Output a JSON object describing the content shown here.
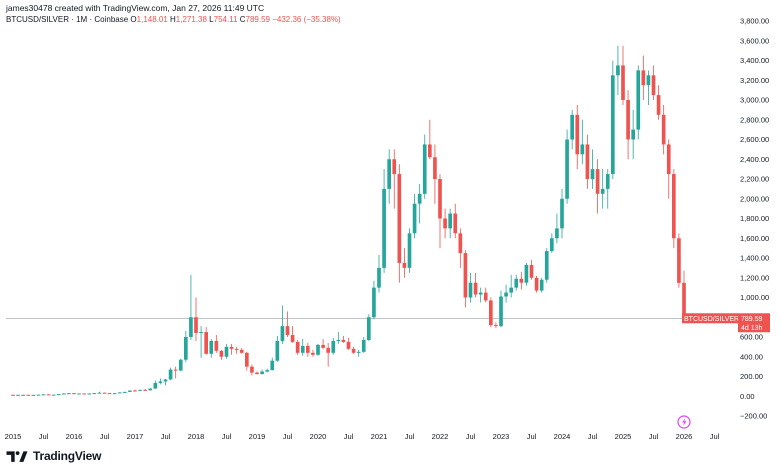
{
  "header": {
    "created_by": "james30478 created with TradingView.com, Jan 27, 2026 11:49 UTC",
    "symbol": "BTCUSD/SILVER",
    "interval": "1M",
    "exchange": "Coinbase",
    "open_label": "O",
    "open_value": "1,148.01",
    "high_label": "H",
    "high_value": "1,271.38",
    "low_label": "L",
    "low_value": "754.11",
    "close_label": "C",
    "close_value": "789.59",
    "change_value": "−432.36 (−35.38%)"
  },
  "colors": {
    "up": "#26a69a",
    "down": "#ef5350",
    "axis_text": "#131722",
    "price_line": "#9aa0a6"
  },
  "price_tag": {
    "label": "BTCUSD/SILVER",
    "value": "789.59",
    "countdown": "4d 13h"
  },
  "event_icon": "lightning-event-icon",
  "footer": {
    "logo_icon": "tradingview-logo-icon",
    "brand": "TradingView"
  },
  "chart_data": {
    "type": "candlestick",
    "title": "",
    "xlabel": "",
    "ylabel": "",
    "ylim": [
      -200,
      3800
    ],
    "y_ticks": [
      3800,
      3600,
      3400,
      3200,
      3000,
      2800,
      2600,
      2400,
      2200,
      2000,
      1800,
      1600,
      1400,
      1200,
      1000,
      800,
      600,
      400,
      200,
      0,
      -200
    ],
    "y_tick_labels": [
      "3,800.00",
      "3,600.00",
      "3,400.00",
      "3,200.00",
      "3,000.00",
      "2,800.00",
      "2,600.00",
      "2,400.00",
      "2,200.00",
      "2,000.00",
      "1,800.00",
      "1,600.00",
      "1,400.00",
      "1,200.00",
      "1,000.00",
      "",
      "600.00",
      "400.00",
      "200.00",
      "0.00",
      "−200.00"
    ],
    "x_ticks": [
      {
        "label": "2015",
        "x": "2015-01"
      },
      {
        "label": "Jul",
        "x": "2015-07"
      },
      {
        "label": "2016",
        "x": "2016-01"
      },
      {
        "label": "Jul",
        "x": "2016-07"
      },
      {
        "label": "2017",
        "x": "2017-01"
      },
      {
        "label": "Jul",
        "x": "2017-07"
      },
      {
        "label": "2018",
        "x": "2018-01"
      },
      {
        "label": "Jul",
        "x": "2018-07"
      },
      {
        "label": "2019",
        "x": "2019-01"
      },
      {
        "label": "Jul",
        "x": "2019-07"
      },
      {
        "label": "2020",
        "x": "2020-01"
      },
      {
        "label": "Jul",
        "x": "2020-07"
      },
      {
        "label": "2021",
        "x": "2021-01"
      },
      {
        "label": "Jul",
        "x": "2021-07"
      },
      {
        "label": "2022",
        "x": "2022-01"
      },
      {
        "label": "Jul",
        "x": "2022-07"
      },
      {
        "label": "2023",
        "x": "2023-01"
      },
      {
        "label": "Jul",
        "x": "2023-07"
      },
      {
        "label": "2024",
        "x": "2024-01"
      },
      {
        "label": "Jul",
        "x": "2024-07"
      },
      {
        "label": "2025",
        "x": "2025-01"
      },
      {
        "label": "Jul",
        "x": "2025-07"
      },
      {
        "label": "2026",
        "x": "2026-01"
      },
      {
        "label": "Jul",
        "x": "2026-07"
      }
    ],
    "grid": false,
    "last_price": 789.59,
    "candles": [
      {
        "t": "2015-01",
        "o": 15,
        "h": 18,
        "l": 12,
        "c": 14
      },
      {
        "t": "2015-02",
        "o": 14,
        "h": 17,
        "l": 12,
        "c": 15
      },
      {
        "t": "2015-03",
        "o": 15,
        "h": 17,
        "l": 13,
        "c": 15
      },
      {
        "t": "2015-04",
        "o": 15,
        "h": 16,
        "l": 13,
        "c": 14
      },
      {
        "t": "2015-05",
        "o": 14,
        "h": 16,
        "l": 13,
        "c": 14
      },
      {
        "t": "2015-06",
        "o": 14,
        "h": 17,
        "l": 13,
        "c": 16
      },
      {
        "t": "2015-07",
        "o": 16,
        "h": 20,
        "l": 15,
        "c": 19
      },
      {
        "t": "2015-08",
        "o": 19,
        "h": 20,
        "l": 14,
        "c": 16
      },
      {
        "t": "2015-09",
        "o": 16,
        "h": 17,
        "l": 15,
        "c": 16
      },
      {
        "t": "2015-10",
        "o": 16,
        "h": 22,
        "l": 16,
        "c": 21
      },
      {
        "t": "2015-11",
        "o": 21,
        "h": 30,
        "l": 20,
        "c": 28
      },
      {
        "t": "2015-12",
        "o": 28,
        "h": 33,
        "l": 25,
        "c": 31
      },
      {
        "t": "2016-01",
        "o": 31,
        "h": 33,
        "l": 26,
        "c": 27
      },
      {
        "t": "2016-02",
        "o": 27,
        "h": 29,
        "l": 25,
        "c": 28
      },
      {
        "t": "2016-03",
        "o": 28,
        "h": 29,
        "l": 26,
        "c": 27
      },
      {
        "t": "2016-04",
        "o": 27,
        "h": 29,
        "l": 26,
        "c": 28
      },
      {
        "t": "2016-05",
        "o": 28,
        "h": 34,
        "l": 27,
        "c": 32
      },
      {
        "t": "2016-06",
        "o": 32,
        "h": 45,
        "l": 31,
        "c": 36
      },
      {
        "t": "2016-07",
        "o": 36,
        "h": 38,
        "l": 31,
        "c": 32
      },
      {
        "t": "2016-08",
        "o": 32,
        "h": 33,
        "l": 29,
        "c": 30
      },
      {
        "t": "2016-09",
        "o": 30,
        "h": 32,
        "l": 29,
        "c": 31
      },
      {
        "t": "2016-10",
        "o": 31,
        "h": 40,
        "l": 30,
        "c": 39
      },
      {
        "t": "2016-11",
        "o": 39,
        "h": 46,
        "l": 37,
        "c": 44
      },
      {
        "t": "2016-12",
        "o": 44,
        "h": 60,
        "l": 43,
        "c": 58
      },
      {
        "t": "2017-01",
        "o": 58,
        "h": 68,
        "l": 48,
        "c": 55
      },
      {
        "t": "2017-02",
        "o": 55,
        "h": 66,
        "l": 53,
        "c": 65
      },
      {
        "t": "2017-03",
        "o": 65,
        "h": 74,
        "l": 55,
        "c": 60
      },
      {
        "t": "2017-04",
        "o": 60,
        "h": 80,
        "l": 59,
        "c": 78
      },
      {
        "t": "2017-05",
        "o": 78,
        "h": 160,
        "l": 75,
        "c": 135
      },
      {
        "t": "2017-06",
        "o": 135,
        "h": 180,
        "l": 120,
        "c": 150
      },
      {
        "t": "2017-07",
        "o": 150,
        "h": 175,
        "l": 110,
        "c": 170
      },
      {
        "t": "2017-08",
        "o": 170,
        "h": 290,
        "l": 165,
        "c": 270
      },
      {
        "t": "2017-09",
        "o": 270,
        "h": 300,
        "l": 180,
        "c": 260
      },
      {
        "t": "2017-10",
        "o": 260,
        "h": 380,
        "l": 255,
        "c": 370
      },
      {
        "t": "2017-11",
        "o": 370,
        "h": 660,
        "l": 345,
        "c": 600
      },
      {
        "t": "2017-12",
        "o": 600,
        "h": 1230,
        "l": 570,
        "c": 800
      },
      {
        "t": "2018-01",
        "o": 800,
        "h": 1000,
        "l": 560,
        "c": 640
      },
      {
        "t": "2018-02",
        "o": 640,
        "h": 710,
        "l": 390,
        "c": 650
      },
      {
        "t": "2018-03",
        "o": 650,
        "h": 700,
        "l": 420,
        "c": 430
      },
      {
        "t": "2018-04",
        "o": 430,
        "h": 580,
        "l": 390,
        "c": 560
      },
      {
        "t": "2018-05",
        "o": 560,
        "h": 620,
        "l": 440,
        "c": 460
      },
      {
        "t": "2018-06",
        "o": 460,
        "h": 470,
        "l": 370,
        "c": 400
      },
      {
        "t": "2018-07",
        "o": 400,
        "h": 530,
        "l": 380,
        "c": 500
      },
      {
        "t": "2018-08",
        "o": 500,
        "h": 530,
        "l": 420,
        "c": 480
      },
      {
        "t": "2018-09",
        "o": 480,
        "h": 500,
        "l": 430,
        "c": 470
      },
      {
        "t": "2018-10",
        "o": 470,
        "h": 490,
        "l": 430,
        "c": 440
      },
      {
        "t": "2018-11",
        "o": 440,
        "h": 450,
        "l": 260,
        "c": 300
      },
      {
        "t": "2018-12",
        "o": 300,
        "h": 320,
        "l": 210,
        "c": 240
      },
      {
        "t": "2019-01",
        "o": 240,
        "h": 250,
        "l": 220,
        "c": 225
      },
      {
        "t": "2019-02",
        "o": 225,
        "h": 270,
        "l": 220,
        "c": 250
      },
      {
        "t": "2019-03",
        "o": 250,
        "h": 280,
        "l": 240,
        "c": 265
      },
      {
        "t": "2019-04",
        "o": 265,
        "h": 390,
        "l": 260,
        "c": 360
      },
      {
        "t": "2019-05",
        "o": 360,
        "h": 610,
        "l": 350,
        "c": 560
      },
      {
        "t": "2019-06",
        "o": 560,
        "h": 920,
        "l": 530,
        "c": 710
      },
      {
        "t": "2019-07",
        "o": 710,
        "h": 860,
        "l": 600,
        "c": 620
      },
      {
        "t": "2019-08",
        "o": 620,
        "h": 710,
        "l": 540,
        "c": 550
      },
      {
        "t": "2019-09",
        "o": 550,
        "h": 570,
        "l": 420,
        "c": 440
      },
      {
        "t": "2019-10",
        "o": 440,
        "h": 580,
        "l": 410,
        "c": 510
      },
      {
        "t": "2019-11",
        "o": 510,
        "h": 540,
        "l": 400,
        "c": 440
      },
      {
        "t": "2019-12",
        "o": 440,
        "h": 470,
        "l": 400,
        "c": 420
      },
      {
        "t": "2020-01",
        "o": 420,
        "h": 530,
        "l": 410,
        "c": 520
      },
      {
        "t": "2020-02",
        "o": 520,
        "h": 580,
        "l": 480,
        "c": 490
      },
      {
        "t": "2020-03",
        "o": 490,
        "h": 540,
        "l": 300,
        "c": 440
      },
      {
        "t": "2020-04",
        "o": 440,
        "h": 590,
        "l": 420,
        "c": 560
      },
      {
        "t": "2020-05",
        "o": 560,
        "h": 650,
        "l": 530,
        "c": 570
      },
      {
        "t": "2020-06",
        "o": 570,
        "h": 610,
        "l": 540,
        "c": 550
      },
      {
        "t": "2020-07",
        "o": 550,
        "h": 590,
        "l": 470,
        "c": 480
      },
      {
        "t": "2020-08",
        "o": 480,
        "h": 500,
        "l": 430,
        "c": 440
      },
      {
        "t": "2020-09",
        "o": 440,
        "h": 470,
        "l": 400,
        "c": 450
      },
      {
        "t": "2020-10",
        "o": 450,
        "h": 600,
        "l": 440,
        "c": 570
      },
      {
        "t": "2020-11",
        "o": 570,
        "h": 830,
        "l": 560,
        "c": 800
      },
      {
        "t": "2020-12",
        "o": 800,
        "h": 1170,
        "l": 780,
        "c": 1100
      },
      {
        "t": "2021-01",
        "o": 1100,
        "h": 1430,
        "l": 1050,
        "c": 1300
      },
      {
        "t": "2021-02",
        "o": 1300,
        "h": 2300,
        "l": 1250,
        "c": 2100
      },
      {
        "t": "2021-03",
        "o": 2100,
        "h": 2500,
        "l": 1950,
        "c": 2400
      },
      {
        "t": "2021-04",
        "o": 2400,
        "h": 2500,
        "l": 1900,
        "c": 2250
      },
      {
        "t": "2021-05",
        "o": 2250,
        "h": 2350,
        "l": 1150,
        "c": 1350
      },
      {
        "t": "2021-06",
        "o": 1350,
        "h": 1500,
        "l": 1200,
        "c": 1300
      },
      {
        "t": "2021-07",
        "o": 1300,
        "h": 1700,
        "l": 1250,
        "c": 1650
      },
      {
        "t": "2021-08",
        "o": 1650,
        "h": 2050,
        "l": 1600,
        "c": 1950
      },
      {
        "t": "2021-09",
        "o": 1950,
        "h": 2150,
        "l": 1750,
        "c": 2050
      },
      {
        "t": "2021-10",
        "o": 2050,
        "h": 2650,
        "l": 2000,
        "c": 2550
      },
      {
        "t": "2021-11",
        "o": 2550,
        "h": 2800,
        "l": 2400,
        "c": 2420
      },
      {
        "t": "2021-12",
        "o": 2420,
        "h": 2550,
        "l": 1950,
        "c": 2200
      },
      {
        "t": "2022-01",
        "o": 2200,
        "h": 2250,
        "l": 1500,
        "c": 1800
      },
      {
        "t": "2022-02",
        "o": 1800,
        "h": 1900,
        "l": 1600,
        "c": 1700
      },
      {
        "t": "2022-03",
        "o": 1700,
        "h": 1900,
        "l": 1600,
        "c": 1850
      },
      {
        "t": "2022-04",
        "o": 1850,
        "h": 1950,
        "l": 1600,
        "c": 1650
      },
      {
        "t": "2022-05",
        "o": 1650,
        "h": 1700,
        "l": 1300,
        "c": 1450
      },
      {
        "t": "2022-06",
        "o": 1450,
        "h": 1480,
        "l": 900,
        "c": 1000
      },
      {
        "t": "2022-07",
        "o": 1000,
        "h": 1250,
        "l": 950,
        "c": 1150
      },
      {
        "t": "2022-08",
        "o": 1150,
        "h": 1250,
        "l": 1000,
        "c": 1030
      },
      {
        "t": "2022-09",
        "o": 1030,
        "h": 1100,
        "l": 950,
        "c": 1050
      },
      {
        "t": "2022-10",
        "o": 1050,
        "h": 1100,
        "l": 950,
        "c": 970
      },
      {
        "t": "2022-11",
        "o": 970,
        "h": 1000,
        "l": 700,
        "c": 720
      },
      {
        "t": "2022-12",
        "o": 720,
        "h": 750,
        "l": 690,
        "c": 710
      },
      {
        "t": "2023-01",
        "o": 710,
        "h": 1070,
        "l": 700,
        "c": 1010
      },
      {
        "t": "2023-02",
        "o": 1010,
        "h": 1130,
        "l": 950,
        "c": 1050
      },
      {
        "t": "2023-03",
        "o": 1050,
        "h": 1230,
        "l": 1000,
        "c": 1100
      },
      {
        "t": "2023-04",
        "o": 1100,
        "h": 1230,
        "l": 1070,
        "c": 1190
      },
      {
        "t": "2023-05",
        "o": 1190,
        "h": 1260,
        "l": 1080,
        "c": 1150
      },
      {
        "t": "2023-06",
        "o": 1150,
        "h": 1350,
        "l": 1120,
        "c": 1330
      },
      {
        "t": "2023-07",
        "o": 1330,
        "h": 1380,
        "l": 1180,
        "c": 1200
      },
      {
        "t": "2023-08",
        "o": 1200,
        "h": 1220,
        "l": 1050,
        "c": 1070
      },
      {
        "t": "2023-09",
        "o": 1070,
        "h": 1200,
        "l": 1050,
        "c": 1180
      },
      {
        "t": "2023-10",
        "o": 1180,
        "h": 1500,
        "l": 1150,
        "c": 1470
      },
      {
        "t": "2023-11",
        "o": 1470,
        "h": 1650,
        "l": 1450,
        "c": 1600
      },
      {
        "t": "2023-12",
        "o": 1600,
        "h": 1850,
        "l": 1550,
        "c": 1700
      },
      {
        "t": "2024-01",
        "o": 1700,
        "h": 2100,
        "l": 1600,
        "c": 2000
      },
      {
        "t": "2024-02",
        "o": 2000,
        "h": 2700,
        "l": 1950,
        "c": 2600
      },
      {
        "t": "2024-03",
        "o": 2600,
        "h": 2900,
        "l": 2500,
        "c": 2850
      },
      {
        "t": "2024-04",
        "o": 2850,
        "h": 2950,
        "l": 2300,
        "c": 2450
      },
      {
        "t": "2024-05",
        "o": 2450,
        "h": 2800,
        "l": 2350,
        "c": 2550
      },
      {
        "t": "2024-06",
        "o": 2550,
        "h": 2650,
        "l": 2100,
        "c": 2200
      },
      {
        "t": "2024-07",
        "o": 2200,
        "h": 2500,
        "l": 2100,
        "c": 2300
      },
      {
        "t": "2024-08",
        "o": 2300,
        "h": 2400,
        "l": 1850,
        "c": 2050
      },
      {
        "t": "2024-09",
        "o": 2050,
        "h": 2300,
        "l": 1900,
        "c": 2100
      },
      {
        "t": "2024-10",
        "o": 2100,
        "h": 2300,
        "l": 1900,
        "c": 2250
      },
      {
        "t": "2024-11",
        "o": 2250,
        "h": 3400,
        "l": 2200,
        "c": 3250
      },
      {
        "t": "2024-12",
        "o": 3250,
        "h": 3550,
        "l": 3050,
        "c": 3350
      },
      {
        "t": "2025-01",
        "o": 3350,
        "h": 3550,
        "l": 2950,
        "c": 3000
      },
      {
        "t": "2025-02",
        "o": 3000,
        "h": 3100,
        "l": 2400,
        "c": 2600
      },
      {
        "t": "2025-03",
        "o": 2600,
        "h": 2900,
        "l": 2400,
        "c": 2700
      },
      {
        "t": "2025-04",
        "o": 2700,
        "h": 3350,
        "l": 2600,
        "c": 3300
      },
      {
        "t": "2025-05",
        "o": 3300,
        "h": 3450,
        "l": 3000,
        "c": 3150
      },
      {
        "t": "2025-06",
        "o": 3150,
        "h": 3300,
        "l": 2950,
        "c": 3250
      },
      {
        "t": "2025-07",
        "o": 3250,
        "h": 3350,
        "l": 3000,
        "c": 3050
      },
      {
        "t": "2025-08",
        "o": 3050,
        "h": 3150,
        "l": 2800,
        "c": 2850
      },
      {
        "t": "2025-09",
        "o": 2850,
        "h": 2950,
        "l": 2450,
        "c": 2550
      },
      {
        "t": "2025-10",
        "o": 2550,
        "h": 2600,
        "l": 2000,
        "c": 2250
      },
      {
        "t": "2025-11",
        "o": 2250,
        "h": 2300,
        "l": 1500,
        "c": 1600
      },
      {
        "t": "2025-12",
        "o": 1600,
        "h": 1650,
        "l": 1100,
        "c": 1148.01
      },
      {
        "t": "2026-01",
        "o": 1148.01,
        "h": 1271.38,
        "l": 754.11,
        "c": 789.59
      }
    ]
  }
}
